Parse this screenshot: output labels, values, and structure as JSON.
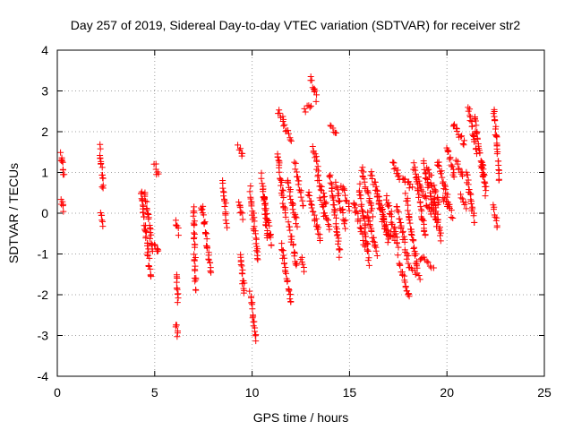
{
  "chart_data": {
    "type": "scatter",
    "title": "Day 257 of 2019, Sidereal Day-to-day VTEC variation (SDTVAR) for receiver str2",
    "xlabel": "GPS time / hours",
    "ylabel": "SDTVAR / TECUs",
    "xlim": [
      0,
      25
    ],
    "ylim": [
      -4,
      4
    ],
    "x_ticks": [
      0,
      5,
      10,
      15,
      20,
      25
    ],
    "y_ticks": [
      -4,
      -3,
      -2,
      -1,
      0,
      1,
      2,
      3,
      4
    ],
    "x_tick_labels": [
      "0",
      "5",
      "10",
      "15",
      "20",
      "25"
    ],
    "y_tick_labels": [
      "-4",
      "-3",
      "-2",
      "-1",
      "0",
      "1",
      "2",
      "3",
      "4"
    ],
    "grid": true,
    "marker": "+",
    "series": [
      {
        "name": "SDTVAR",
        "color": "#ff0000",
        "segments": [
          {
            "x0": 0.2,
            "x1": 0.35,
            "y0": 1.5,
            "y1": 0.9
          },
          {
            "x0": 0.2,
            "x1": 0.35,
            "y0": 0.35,
            "y1": 0.05
          },
          {
            "x0": 2.2,
            "x1": 2.35,
            "y0": 1.6,
            "y1": 0.6
          },
          {
            "x0": 2.2,
            "x1": 2.35,
            "y0": 0.05,
            "y1": -0.3
          },
          {
            "x0": 4.3,
            "x1": 4.8,
            "y0": 0.6,
            "y1": -1.6
          },
          {
            "x0": 4.5,
            "x1": 4.9,
            "y0": 0.5,
            "y1": -0.9
          },
          {
            "x0": 5.0,
            "x1": 5.2,
            "y0": 1.2,
            "y1": 0.9
          },
          {
            "x0": 5.0,
            "x1": 5.2,
            "y0": -0.8,
            "y1": -1.0
          },
          {
            "x0": 6.1,
            "x1": 6.2,
            "y0": -1.5,
            "y1": -2.2
          },
          {
            "x0": 6.1,
            "x1": 6.2,
            "y0": -2.7,
            "y1": -3.0
          },
          {
            "x0": 6.1,
            "x1": 6.2,
            "y0": -0.2,
            "y1": -0.5
          },
          {
            "x0": 7.0,
            "x1": 7.1,
            "y0": 0.2,
            "y1": -1.9
          },
          {
            "x0": 7.4,
            "x1": 7.9,
            "y0": 0.2,
            "y1": -1.5
          },
          {
            "x0": 8.5,
            "x1": 8.7,
            "y0": 0.8,
            "y1": -0.3
          },
          {
            "x0": 9.3,
            "x1": 9.5,
            "y0": 1.7,
            "y1": 1.4
          },
          {
            "x0": 9.4,
            "x1": 9.6,
            "y0": -1.0,
            "y1": -2.0
          },
          {
            "x0": 9.3,
            "x1": 9.5,
            "y0": 0.3,
            "y1": -0.1
          },
          {
            "x0": 9.9,
            "x1": 10.2,
            "y0": -2.0,
            "y1": -3.1
          },
          {
            "x0": 9.9,
            "x1": 10.3,
            "y0": 0.6,
            "y1": -1.2
          },
          {
            "x0": 10.5,
            "x1": 10.8,
            "y0": 0.9,
            "y1": -0.6
          },
          {
            "x0": 10.6,
            "x1": 11.0,
            "y0": 0.4,
            "y1": -0.8
          },
          {
            "x0": 11.3,
            "x1": 11.6,
            "y0": 2.5,
            "y1": 2.3
          },
          {
            "x0": 11.3,
            "x1": 11.7,
            "y0": 1.5,
            "y1": -0.1
          },
          {
            "x0": 11.5,
            "x1": 12.0,
            "y0": -0.8,
            "y1": -2.2
          },
          {
            "x0": 11.6,
            "x1": 12.0,
            "y0": 2.2,
            "y1": 1.8
          },
          {
            "x0": 11.8,
            "x1": 12.3,
            "y0": 0.8,
            "y1": -0.3
          },
          {
            "x0": 11.9,
            "x1": 12.3,
            "y0": -0.3,
            "y1": -1.3
          },
          {
            "x0": 12.2,
            "x1": 12.6,
            "y0": 1.2,
            "y1": 0.2
          },
          {
            "x0": 12.5,
            "x1": 12.7,
            "y0": -1.1,
            "y1": -1.4
          },
          {
            "x0": 12.7,
            "x1": 13.0,
            "y0": 2.5,
            "y1": 2.7
          },
          {
            "x0": 13.0,
            "x1": 13.3,
            "y0": 3.3,
            "y1": 2.8
          },
          {
            "x0": 12.9,
            "x1": 13.5,
            "y0": 0.5,
            "y1": -0.7
          },
          {
            "x0": 13.1,
            "x1": 13.4,
            "y0": 1.6,
            "y1": 1.1
          },
          {
            "x0": 13.3,
            "x1": 13.8,
            "y0": 1.0,
            "y1": 0.2
          },
          {
            "x0": 13.5,
            "x1": 14.0,
            "y0": 0.3,
            "y1": -0.4
          },
          {
            "x0": 14.0,
            "x1": 14.3,
            "y0": 2.1,
            "y1": 1.9
          },
          {
            "x0": 14.0,
            "x1": 14.5,
            "y0": 1.0,
            "y1": -1.0
          },
          {
            "x0": 14.3,
            "x1": 14.8,
            "y0": 0.7,
            "y1": -0.3
          },
          {
            "x0": 14.6,
            "x1": 15.0,
            "y0": 0.7,
            "y1": 0.1
          },
          {
            "x0": 15.2,
            "x1": 15.8,
            "y0": 0.3,
            "y1": -0.8
          },
          {
            "x0": 15.5,
            "x1": 16.0,
            "y0": 0.7,
            "y1": -1.2
          },
          {
            "x0": 15.6,
            "x1": 16.2,
            "y0": 1.1,
            "y1": 0.0
          },
          {
            "x0": 15.9,
            "x1": 16.4,
            "y0": 0.0,
            "y1": -1.0
          },
          {
            "x0": 16.1,
            "x1": 16.8,
            "y0": 1.0,
            "y1": -0.1
          },
          {
            "x0": 16.4,
            "x1": 17.0,
            "y0": 0.5,
            "y1": -0.7
          },
          {
            "x0": 16.7,
            "x1": 17.3,
            "y0": -0.2,
            "y1": -0.7
          },
          {
            "x0": 16.9,
            "x1": 17.5,
            "y0": 0.4,
            "y1": -0.8
          },
          {
            "x0": 17.2,
            "x1": 17.6,
            "y0": 1.3,
            "y1": 0.8
          },
          {
            "x0": 17.4,
            "x1": 18.0,
            "y0": 0.2,
            "y1": -1.1
          },
          {
            "x0": 17.5,
            "x1": 18.1,
            "y0": -1.1,
            "y1": -2.1
          },
          {
            "x0": 17.7,
            "x1": 18.2,
            "y0": 0.9,
            "y1": 0.6
          },
          {
            "x0": 17.9,
            "x1": 18.5,
            "y0": 0.4,
            "y1": -1.4
          },
          {
            "x0": 18.0,
            "x1": 18.6,
            "y0": -1.3,
            "y1": -1.6
          },
          {
            "x0": 18.3,
            "x1": 18.9,
            "y0": 1.2,
            "y1": -0.6
          },
          {
            "x0": 18.5,
            "x1": 19.2,
            "y0": 0.8,
            "y1": 0.0
          },
          {
            "x0": 18.6,
            "x1": 19.3,
            "y0": -1.1,
            "y1": -1.3
          },
          {
            "x0": 18.8,
            "x1": 19.5,
            "y0": 1.2,
            "y1": -0.3
          },
          {
            "x0": 19.0,
            "x1": 19.6,
            "y0": 1.1,
            "y1": 0.2
          },
          {
            "x0": 19.3,
            "x1": 19.7,
            "y0": 0.4,
            "y1": -0.6
          },
          {
            "x0": 19.5,
            "x1": 20.1,
            "y0": 1.3,
            "y1": 0.3
          },
          {
            "x0": 19.8,
            "x1": 20.3,
            "y0": 0.4,
            "y1": -0.1
          },
          {
            "x0": 20.0,
            "x1": 20.4,
            "y0": 1.6,
            "y1": 0.9
          },
          {
            "x0": 20.3,
            "x1": 20.9,
            "y0": 2.2,
            "y1": 1.7
          },
          {
            "x0": 20.5,
            "x1": 20.8,
            "y0": 1.3,
            "y1": 0.9
          },
          {
            "x0": 20.7,
            "x1": 21.0,
            "y0": 0.5,
            "y1": 0.2
          },
          {
            "x0": 21.1,
            "x1": 21.5,
            "y0": 2.6,
            "y1": 1.5
          },
          {
            "x0": 21.0,
            "x1": 21.4,
            "y0": 1.0,
            "y1": -0.2
          },
          {
            "x0": 21.4,
            "x1": 21.9,
            "y0": 2.4,
            "y1": 0.8
          },
          {
            "x0": 21.8,
            "x1": 22.0,
            "y0": 1.3,
            "y1": 0.5
          },
          {
            "x0": 22.4,
            "x1": 22.7,
            "y0": 2.6,
            "y1": 0.8
          },
          {
            "x0": 22.4,
            "x1": 22.6,
            "y0": 0.2,
            "y1": -0.3
          }
        ]
      }
    ]
  }
}
